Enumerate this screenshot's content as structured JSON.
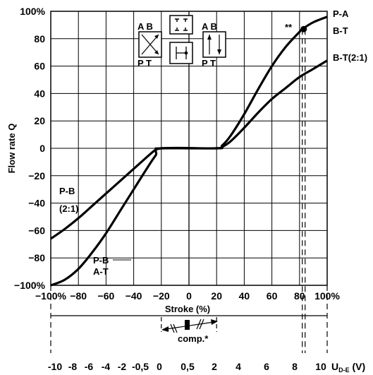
{
  "chart_data": {
    "type": "line",
    "ylabel": "Flow rate Q",
    "xlabel": "Stroke (%)",
    "xlim": [
      -100,
      100
    ],
    "ylim": [
      -100,
      100
    ],
    "grid": true,
    "x_ticks": [
      "−100%",
      "−80",
      "−60",
      "−40",
      "−20",
      "0",
      "20",
      "40",
      "60",
      "80",
      "100%"
    ],
    "y_ticks": [
      "100%",
      "80",
      "60",
      "40",
      "20",
      "0",
      "−20",
      "−40",
      "−60",
      "−80",
      "−100%"
    ],
    "series": [
      {
        "name": "P-A B-T / P-B A-T",
        "x": [
          -100,
          -90,
          -80,
          -70,
          -60,
          -50,
          -40,
          -30,
          -24,
          -20,
          20,
          24,
          30,
          40,
          50,
          60,
          70,
          80,
          82,
          90,
          100
        ],
        "y": [
          -100,
          -96,
          -88,
          -76,
          -62,
          -46,
          -30,
          -14,
          -5,
          0,
          0,
          2,
          9,
          25,
          43,
          60,
          74,
          85,
          87,
          92,
          96
        ]
      },
      {
        "name": "B-T(2:1) / P-B (2:1)",
        "x": [
          -100,
          -90,
          -80,
          -70,
          -60,
          -50,
          -40,
          -30,
          -24,
          -20,
          20,
          24,
          30,
          40,
          50,
          60,
          70,
          80,
          90,
          100
        ],
        "y": [
          -66,
          -59,
          -51,
          -42,
          -33,
          -24,
          -15,
          -6,
          -1,
          0,
          0,
          1,
          5,
          15,
          26,
          36,
          44,
          52,
          58,
          64
        ]
      }
    ],
    "annotations": {
      "p_a": "P-A",
      "b_t": "B-T",
      "b_t_21": "B-T(2:1)",
      "p_b_21_line1": "P-B",
      "p_b_21_line2": "(2:1)",
      "p_b": "P-B",
      "a_t": "A-T",
      "stars": "**",
      "marker_x": 82,
      "marker_y": 87
    },
    "symbols": {
      "left_top": "A B",
      "left_bottom": "P T",
      "right_top": "A B",
      "right_bottom": "P T"
    },
    "voltage_axis": {
      "ticks": [
        "-10",
        "-8",
        "-6",
        "-4",
        "-2",
        "-0,5",
        "0",
        "0,5",
        "2",
        "4",
        "6",
        "8",
        "10"
      ],
      "unit_main": "U",
      "unit_sub": "D-E",
      "unit_suffix": " (V)",
      "comp_label": "comp.*"
    }
  }
}
